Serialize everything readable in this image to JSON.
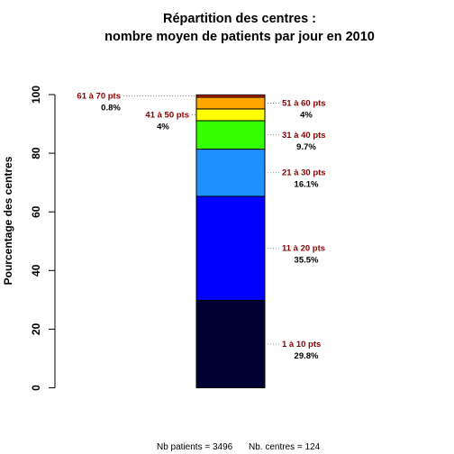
{
  "chart_data": {
    "type": "bar",
    "stacked": true,
    "title": "Répartition des centres :",
    "subtitle": "nombre moyen de patients par jour en 2010",
    "ylabel": "Pourcentage des centres",
    "ylim": [
      0,
      100
    ],
    "yticks": [
      "0",
      "20",
      "40",
      "60",
      "80",
      "100"
    ],
    "segments": [
      {
        "label": "1 à 10 pts",
        "percent_label": "29.8%",
        "value": 29.8,
        "color": "#000033",
        "side": "right"
      },
      {
        "label": "11 à 20 pts",
        "percent_label": "35.5%",
        "value": 35.5,
        "color": "#0000ff",
        "side": "right"
      },
      {
        "label": "21 à 30 pts",
        "percent_label": "16.1%",
        "value": 16.1,
        "color": "#1e90ff",
        "side": "right"
      },
      {
        "label": "31 à 40 pts",
        "percent_label": "9.7%",
        "value": 9.7,
        "color": "#33ff00",
        "side": "right"
      },
      {
        "label": "41 à 50 pts",
        "percent_label": "4%",
        "value": 4.0,
        "color": "#ffff00",
        "side": "left"
      },
      {
        "label": "51 à 60 pts",
        "percent_label": "4%",
        "value": 4.0,
        "color": "#ffa500",
        "side": "right"
      },
      {
        "label": "61 à 70 pts",
        "percent_label": "0.8%",
        "value": 0.8,
        "color": "#cc2200",
        "side": "left"
      }
    ],
    "footer": {
      "patients_label": "Nb patients = ",
      "patients_value": "3496",
      "centres_label": "Nb. centres = ",
      "centres_value": "124"
    }
  }
}
